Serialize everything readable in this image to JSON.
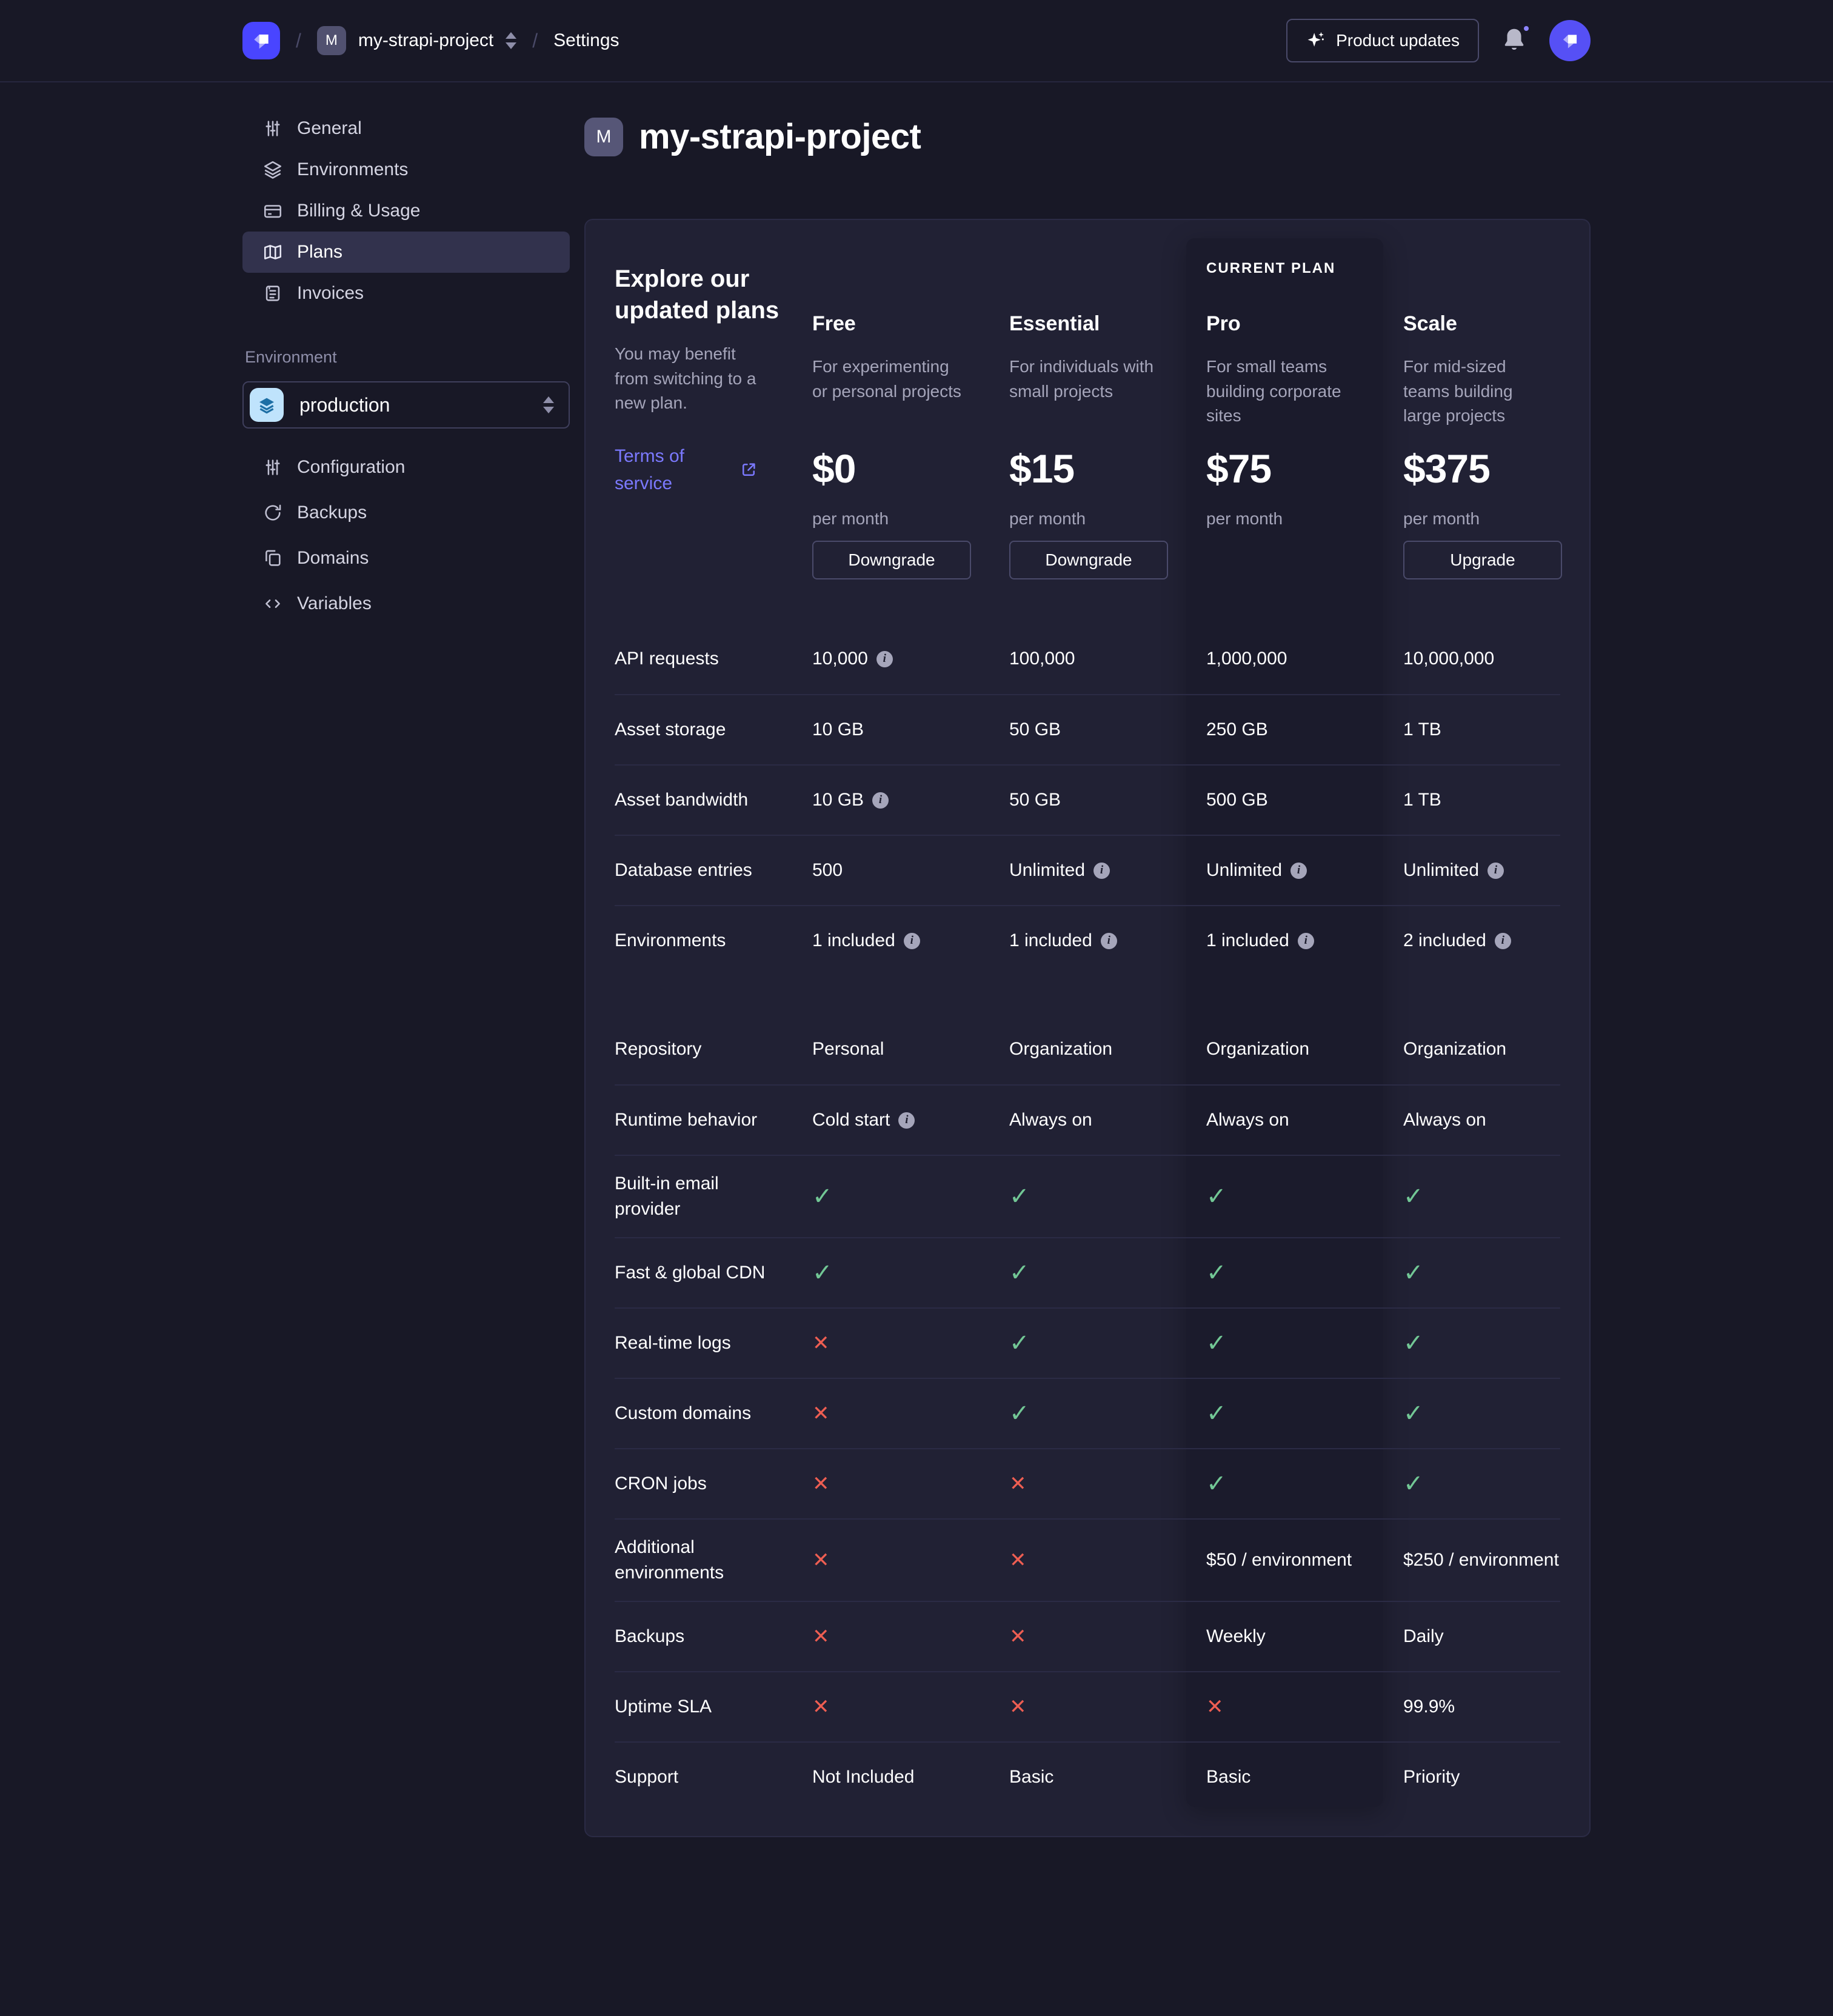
{
  "colors": {
    "page_bg": "#181826",
    "card_bg": "#212134",
    "current_plan_bg": "#1b1b2c",
    "accent": "#4945ff",
    "link": "#7b79ff",
    "success": "#72c795",
    "danger": "#ee5e52",
    "muted_text": "#a5a5ba"
  },
  "topbar": {
    "separator": "/",
    "breadcrumb_badge": "M",
    "project_name": "my-strapi-project",
    "section": "Settings",
    "product_updates_label": "Product updates",
    "icons": [
      "strapi-logo-icon",
      "sparkles-icon",
      "bell-icon",
      "avatar-strapi-icon"
    ]
  },
  "sidebar": {
    "items": [
      {
        "label": "General",
        "icon": "sliders-icon",
        "selected": false
      },
      {
        "label": "Environments",
        "icon": "layers-icon",
        "selected": false
      },
      {
        "label": "Billing & Usage",
        "icon": "credit-card-icon",
        "selected": false
      },
      {
        "label": "Plans",
        "icon": "map-icon",
        "selected": true
      },
      {
        "label": "Invoices",
        "icon": "invoice-icon",
        "selected": false
      }
    ],
    "environment_section": {
      "label": "Environment",
      "selected_value": "production",
      "value_icon": "layers-blue-icon",
      "items": [
        {
          "label": "Configuration",
          "icon": "sliders-icon"
        },
        {
          "label": "Backups",
          "icon": "refresh-icon"
        },
        {
          "label": "Domains",
          "icon": "copy-icon"
        },
        {
          "label": "Variables",
          "icon": "code-icon"
        }
      ]
    }
  },
  "main": {
    "title_badge": "M",
    "title": "my-strapi-project",
    "intro": {
      "title": "Explore our updated plans",
      "subtitle": "You may benefit from switching to a new plan.",
      "link_label": "Terms of service",
      "link_icon": "external-link-icon"
    },
    "current_plan_label": "CURRENT PLAN",
    "plans": [
      {
        "name": "Free",
        "desc": "For experimenting or personal projects",
        "price": "$0",
        "period": "per month",
        "button": "Downgrade",
        "current": false
      },
      {
        "name": "Essential",
        "desc": "For individuals with small projects",
        "price": "$15",
        "period": "per month",
        "button": "Downgrade",
        "current": false
      },
      {
        "name": "Pro",
        "desc": "For small teams building corporate sites",
        "price": "$75",
        "period": "per month",
        "button": null,
        "current": true
      },
      {
        "name": "Scale",
        "desc": "For mid-sized teams building large projects",
        "price": "$375",
        "period": "per month",
        "button": "Upgrade",
        "current": false
      }
    ],
    "features": [
      {
        "label": "API requests",
        "gap_after": false,
        "values": [
          {
            "text": "10,000",
            "info": true
          },
          {
            "text": "100,000"
          },
          {
            "text": "1,000,000"
          },
          {
            "text": "10,000,000"
          }
        ]
      },
      {
        "label": "Asset storage",
        "gap_after": false,
        "values": [
          {
            "text": "10 GB"
          },
          {
            "text": "50 GB"
          },
          {
            "text": "250 GB"
          },
          {
            "text": "1 TB"
          }
        ]
      },
      {
        "label": "Asset bandwidth",
        "gap_after": false,
        "values": [
          {
            "text": "10 GB",
            "info": true
          },
          {
            "text": "50 GB"
          },
          {
            "text": "500 GB"
          },
          {
            "text": "1 TB"
          }
        ]
      },
      {
        "label": "Database entries",
        "gap_after": false,
        "values": [
          {
            "text": "500"
          },
          {
            "text": "Unlimited",
            "info": true
          },
          {
            "text": "Unlimited",
            "info": true
          },
          {
            "text": "Unlimited",
            "info": true
          }
        ]
      },
      {
        "label": "Environments",
        "gap_after": true,
        "values": [
          {
            "text": "1 included",
            "info": true
          },
          {
            "text": "1 included",
            "info": true
          },
          {
            "text": "1 included",
            "info": true
          },
          {
            "text": "2 included",
            "info": true
          }
        ]
      },
      {
        "label": "Repository",
        "gap_after": false,
        "values": [
          {
            "text": "Personal"
          },
          {
            "text": "Organization"
          },
          {
            "text": "Organization"
          },
          {
            "text": "Organization"
          }
        ]
      },
      {
        "label": "Runtime behavior",
        "gap_after": false,
        "values": [
          {
            "text": "Cold start",
            "info": true
          },
          {
            "text": "Always on"
          },
          {
            "text": "Always on"
          },
          {
            "text": "Always on"
          }
        ]
      },
      {
        "label": "Built-in email provider",
        "gap_after": false,
        "values": [
          {
            "type": "check"
          },
          {
            "type": "check"
          },
          {
            "type": "check"
          },
          {
            "type": "check"
          }
        ]
      },
      {
        "label": "Fast & global CDN",
        "gap_after": false,
        "values": [
          {
            "type": "check"
          },
          {
            "type": "check"
          },
          {
            "type": "check"
          },
          {
            "type": "check"
          }
        ]
      },
      {
        "label": "Real-time logs",
        "gap_after": false,
        "values": [
          {
            "type": "cross"
          },
          {
            "type": "check"
          },
          {
            "type": "check"
          },
          {
            "type": "check"
          }
        ]
      },
      {
        "label": "Custom domains",
        "gap_after": false,
        "values": [
          {
            "type": "cross"
          },
          {
            "type": "check"
          },
          {
            "type": "check"
          },
          {
            "type": "check"
          }
        ]
      },
      {
        "label": "CRON jobs",
        "gap_after": false,
        "values": [
          {
            "type": "cross"
          },
          {
            "type": "cross"
          },
          {
            "type": "check"
          },
          {
            "type": "check"
          }
        ]
      },
      {
        "label": "Additional environments",
        "gap_after": false,
        "values": [
          {
            "type": "cross"
          },
          {
            "type": "cross"
          },
          {
            "text": "$50 / environment"
          },
          {
            "text": "$250 / environment"
          }
        ]
      },
      {
        "label": "Backups",
        "gap_after": false,
        "values": [
          {
            "type": "cross"
          },
          {
            "type": "cross"
          },
          {
            "text": "Weekly"
          },
          {
            "text": "Daily"
          }
        ]
      },
      {
        "label": "Uptime SLA",
        "gap_after": false,
        "values": [
          {
            "type": "cross"
          },
          {
            "type": "cross"
          },
          {
            "type": "cross"
          },
          {
            "text": "99.9%"
          }
        ]
      },
      {
        "label": "Support",
        "gap_after": false,
        "values": [
          {
            "text": "Not Included"
          },
          {
            "text": "Basic"
          },
          {
            "text": "Basic"
          },
          {
            "text": "Priority"
          }
        ]
      }
    ]
  }
}
